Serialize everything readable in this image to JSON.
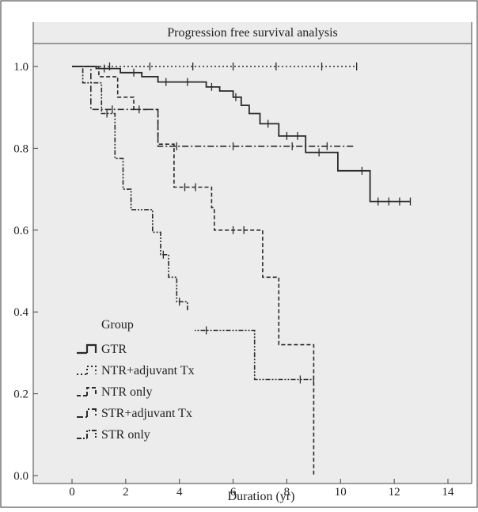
{
  "chart_data": {
    "type": "line",
    "subtype": "kaplan-meier step",
    "title": "Progression free survival analysis",
    "xlabel": "Duration (yr)",
    "ylabel": "",
    "xlim": [
      0,
      14
    ],
    "ylim": [
      0,
      1.0
    ],
    "x_ticks": [
      "0",
      "2",
      "4",
      "6",
      "8",
      "10",
      "12",
      "14"
    ],
    "y_ticks": [
      "0.0",
      "0.2",
      "0.4",
      "0.6",
      "0.8",
      "1.0"
    ],
    "grid": false,
    "legend_title": "Group",
    "legend_position": "bottom-left",
    "series": [
      {
        "name": "GTR",
        "style": "solid",
        "points": [
          [
            0,
            1.0
          ],
          [
            0.9,
            1.0
          ],
          [
            0.9,
            0.995
          ],
          [
            1.8,
            0.995
          ],
          [
            1.8,
            0.985
          ],
          [
            2.6,
            0.985
          ],
          [
            2.6,
            0.975
          ],
          [
            3.2,
            0.975
          ],
          [
            3.2,
            0.962
          ],
          [
            5.0,
            0.962
          ],
          [
            5.0,
            0.95
          ],
          [
            5.5,
            0.95
          ],
          [
            5.5,
            0.94
          ],
          [
            6.0,
            0.94
          ],
          [
            6.0,
            0.925
          ],
          [
            6.3,
            0.925
          ],
          [
            6.3,
            0.905
          ],
          [
            6.6,
            0.905
          ],
          [
            6.6,
            0.885
          ],
          [
            7.0,
            0.885
          ],
          [
            7.0,
            0.86
          ],
          [
            7.7,
            0.86
          ],
          [
            7.7,
            0.83
          ],
          [
            8.7,
            0.83
          ],
          [
            8.7,
            0.79
          ],
          [
            9.9,
            0.79
          ],
          [
            9.9,
            0.745
          ],
          [
            11.1,
            0.745
          ],
          [
            11.1,
            0.67
          ],
          [
            12.6,
            0.67
          ]
        ],
        "censored": [
          [
            1.2,
            0.995
          ],
          [
            2.3,
            0.985
          ],
          [
            3.5,
            0.962
          ],
          [
            4.3,
            0.962
          ],
          [
            5.2,
            0.95
          ],
          [
            6.1,
            0.925
          ],
          [
            7.3,
            0.86
          ],
          [
            8.0,
            0.83
          ],
          [
            8.4,
            0.83
          ],
          [
            9.2,
            0.79
          ],
          [
            10.8,
            0.745
          ],
          [
            11.4,
            0.67
          ],
          [
            11.8,
            0.67
          ],
          [
            12.2,
            0.67
          ],
          [
            12.6,
            0.67
          ]
        ]
      },
      {
        "name": "NTR+adjuvant Tx",
        "style": "dotted",
        "points": [
          [
            0,
            1.0
          ],
          [
            10.6,
            1.0
          ]
        ],
        "censored": [
          [
            1.4,
            1.0
          ],
          [
            2.9,
            1.0
          ],
          [
            4.5,
            1.0
          ],
          [
            6.0,
            1.0
          ],
          [
            7.6,
            1.0
          ],
          [
            9.3,
            1.0
          ],
          [
            10.6,
            1.0
          ]
        ]
      },
      {
        "name": "NTR only",
        "style": "dashed",
        "points": [
          [
            0,
            1.0
          ],
          [
            1.0,
            1.0
          ],
          [
            1.0,
            0.975
          ],
          [
            1.7,
            0.975
          ],
          [
            1.7,
            0.925
          ],
          [
            2.3,
            0.925
          ],
          [
            2.3,
            0.895
          ],
          [
            3.2,
            0.895
          ],
          [
            3.2,
            0.81
          ],
          [
            3.8,
            0.81
          ],
          [
            3.8,
            0.705
          ],
          [
            5.2,
            0.705
          ],
          [
            5.2,
            0.655
          ],
          [
            5.3,
            0.655
          ],
          [
            5.3,
            0.6
          ],
          [
            7.1,
            0.6
          ],
          [
            7.1,
            0.485
          ],
          [
            7.7,
            0.485
          ],
          [
            7.7,
            0.32
          ],
          [
            9.0,
            0.32
          ],
          [
            9.0,
            0.0
          ]
        ],
        "censored": [
          [
            2.5,
            0.895
          ],
          [
            4.2,
            0.705
          ],
          [
            4.6,
            0.705
          ],
          [
            6.0,
            0.6
          ],
          [
            6.4,
            0.6
          ]
        ]
      },
      {
        "name": "STR+adjuvant Tx",
        "style": "dash-dot",
        "points": [
          [
            0,
            1.0
          ],
          [
            0.7,
            1.0
          ],
          [
            0.7,
            0.895
          ],
          [
            3.2,
            0.895
          ],
          [
            3.2,
            0.805
          ],
          [
            10.5,
            0.805
          ]
        ],
        "censored": [
          [
            1.5,
            0.895
          ],
          [
            3.9,
            0.805
          ],
          [
            6.0,
            0.805
          ],
          [
            8.2,
            0.805
          ],
          [
            9.5,
            0.805
          ]
        ]
      },
      {
        "name": "STR only",
        "style": "dash-dot-dot",
        "points": [
          [
            0,
            1.0
          ],
          [
            0.4,
            1.0
          ],
          [
            0.4,
            0.96
          ],
          [
            1.1,
            0.96
          ],
          [
            1.1,
            0.885
          ],
          [
            1.6,
            0.885
          ],
          [
            1.6,
            0.775
          ],
          [
            1.9,
            0.775
          ],
          [
            1.9,
            0.7
          ],
          [
            2.2,
            0.7
          ],
          [
            2.2,
            0.65
          ],
          [
            3.0,
            0.65
          ],
          [
            3.0,
            0.595
          ],
          [
            3.3,
            0.595
          ],
          [
            3.3,
            0.54
          ],
          [
            3.6,
            0.54
          ],
          [
            3.6,
            0.485
          ],
          [
            3.9,
            0.485
          ],
          [
            3.9,
            0.425
          ],
          [
            4.3,
            0.425
          ],
          [
            4.3,
            0.355
          ],
          [
            6.8,
            0.355
          ],
          [
            6.8,
            0.235
          ],
          [
            9.0,
            0.235
          ]
        ],
        "censored": [
          [
            1.3,
            0.885
          ],
          [
            3.4,
            0.54
          ],
          [
            4.0,
            0.425
          ],
          [
            5.0,
            0.355
          ],
          [
            8.5,
            0.235
          ],
          [
            9.0,
            0.235
          ]
        ]
      }
    ]
  }
}
